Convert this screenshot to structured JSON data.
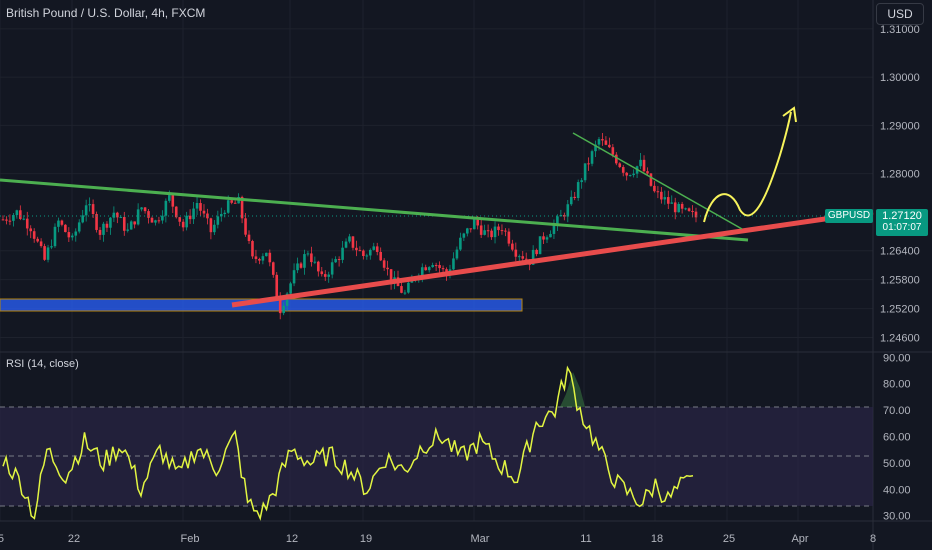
{
  "header": {
    "title": "British Pound / U.S. Dollar, 4h, FXCM"
  },
  "currency_button": "USD",
  "symbol_badge": "GBPUSD",
  "last_price": "1.27120",
  "countdown": "01:07:07",
  "rsi_title": "RSI (14, close)",
  "colors": {
    "background": "#131722",
    "up": "#089981",
    "down": "#f23645",
    "trend_green": "#4caf50",
    "trend_red": "#e84c4c",
    "support_zone": "#2962ff",
    "forecast_arrow": "#f7f35b",
    "rsi_line": "#e2f542",
    "rsi_band": "#2a2544"
  },
  "chart_data": [
    {
      "type": "candlestick",
      "title": "British Pound / U.S. Dollar, 4h, FXCM",
      "x_tick_labels": [
        "5",
        "22",
        "Feb",
        "12",
        "19",
        "Mar",
        "11",
        "18",
        "25",
        "Apr",
        "8"
      ],
      "y_tick_labels": [
        "1.31000",
        "1.30000",
        "1.29000",
        "1.28000",
        "1.27120",
        "1.26400",
        "1.25800",
        "1.25200",
        "1.24600"
      ],
      "ylim": [
        1.243,
        1.316
      ],
      "price_path": [
        [
          0,
          1.2705
        ],
        [
          4,
          1.272
        ],
        [
          8,
          1.269
        ],
        [
          12,
          1.262
        ],
        [
          16,
          1.27
        ],
        [
          20,
          1.266
        ],
        [
          24,
          1.274
        ],
        [
          28,
          1.268
        ],
        [
          32,
          1.272
        ],
        [
          36,
          1.268
        ],
        [
          40,
          1.273
        ],
        [
          44,
          1.27
        ],
        [
          48,
          1.275
        ],
        [
          52,
          1.269
        ],
        [
          56,
          1.274
        ],
        [
          60,
          1.268
        ],
        [
          64,
          1.273
        ],
        [
          68,
          1.274
        ],
        [
          72,
          1.262
        ],
        [
          76,
          1.264
        ],
        [
          80,
          1.252
        ],
        [
          84,
          1.259
        ],
        [
          88,
          1.264
        ],
        [
          92,
          1.258
        ],
        [
          96,
          1.262
        ],
        [
          100,
          1.266
        ],
        [
          104,
          1.263
        ],
        [
          108,
          1.265
        ],
        [
          112,
          1.258
        ],
        [
          116,
          1.255
        ],
        [
          120,
          1.26
        ],
        [
          124,
          1.262
        ],
        [
          128,
          1.259
        ],
        [
          132,
          1.266
        ],
        [
          136,
          1.27
        ],
        [
          140,
          1.267
        ],
        [
          144,
          1.269
        ],
        [
          148,
          1.264
        ],
        [
          152,
          1.262
        ],
        [
          156,
          1.267
        ],
        [
          160,
          1.27
        ],
        [
          164,
          1.274
        ],
        [
          168,
          1.281
        ],
        [
          172,
          1.287
        ],
        [
          176,
          1.284
        ],
        [
          180,
          1.28
        ],
        [
          184,
          1.282
        ],
        [
          188,
          1.276
        ],
        [
          192,
          1.274
        ],
        [
          196,
          1.272
        ],
        [
          200,
          1.271
        ]
      ],
      "last_index": 200
    },
    {
      "type": "line",
      "title": "RSI (14, close)",
      "y_tick_labels": [
        "90.00",
        "80.00",
        "70.00",
        "60.00",
        "50.00",
        "40.00",
        "30.00"
      ],
      "ylim": [
        28,
        92
      ],
      "levels": [
        70,
        50,
        30
      ],
      "path": [
        [
          0,
          52
        ],
        [
          6,
          42
        ],
        [
          10,
          30
        ],
        [
          14,
          55
        ],
        [
          20,
          45
        ],
        [
          26,
          58
        ],
        [
          32,
          50
        ],
        [
          38,
          57
        ],
        [
          44,
          40
        ],
        [
          50,
          55
        ],
        [
          56,
          45
        ],
        [
          62,
          56
        ],
        [
          68,
          48
        ],
        [
          74,
          60
        ],
        [
          78,
          35
        ],
        [
          82,
          30
        ],
        [
          86,
          38
        ],
        [
          92,
          55
        ],
        [
          98,
          50
        ],
        [
          104,
          53
        ],
        [
          110,
          48
        ],
        [
          116,
          40
        ],
        [
          122,
          52
        ],
        [
          128,
          47
        ],
        [
          134,
          57
        ],
        [
          140,
          60
        ],
        [
          146,
          52
        ],
        [
          152,
          58
        ],
        [
          158,
          50
        ],
        [
          164,
          44
        ],
        [
          170,
          65
        ],
        [
          176,
          70
        ],
        [
          180,
          85
        ],
        [
          184,
          70
        ],
        [
          188,
          60
        ],
        [
          192,
          50
        ],
        [
          196,
          42
        ],
        [
          200,
          38
        ],
        [
          204,
          35
        ],
        [
          208,
          42
        ],
        [
          212,
          36
        ],
        [
          216,
          41
        ],
        [
          220,
          43
        ]
      ]
    }
  ]
}
